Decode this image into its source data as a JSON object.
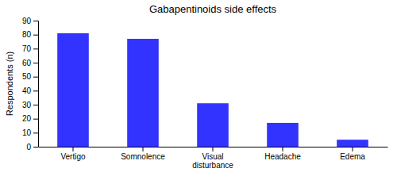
{
  "chart_data": {
    "type": "bar",
    "title": "Gabapentinoids side effects",
    "categories": [
      "Vertigo",
      "Somnolence",
      "Visual\ndisturbance",
      "Headache",
      "Edema"
    ],
    "values": [
      81,
      77,
      31,
      17,
      5
    ],
    "color": "#3333ff",
    "ylabel": "Respondents (n)",
    "ylim": [
      0,
      90
    ],
    "yticks": [
      0,
      10,
      20,
      30,
      40,
      50,
      60,
      70,
      80,
      90
    ]
  }
}
